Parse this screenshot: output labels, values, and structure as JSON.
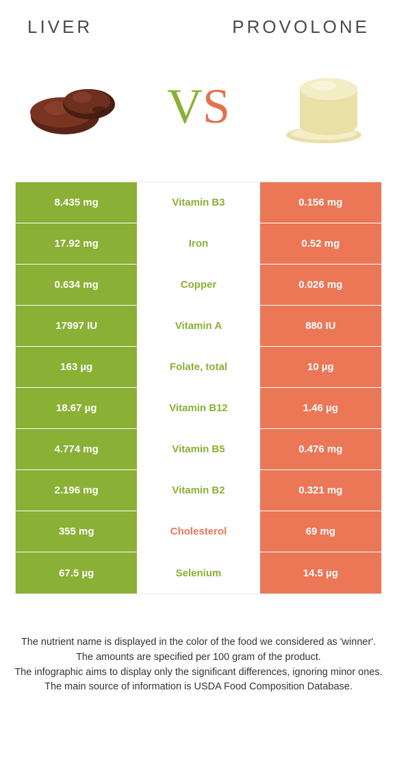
{
  "header": {
    "left": "LIVER",
    "right": "PROVOLONE"
  },
  "vs": {
    "v": "V",
    "s": "S"
  },
  "colors": {
    "green": "#8ab035",
    "orange": "#eb7757",
    "midText": "#8ab035"
  },
  "rows": [
    {
      "left": "8.435 mg",
      "mid": "Vitamin B3",
      "right": "0.156 mg",
      "winner": "left"
    },
    {
      "left": "17.92 mg",
      "mid": "Iron",
      "right": "0.52 mg",
      "winner": "left"
    },
    {
      "left": "0.634 mg",
      "mid": "Copper",
      "right": "0.026 mg",
      "winner": "left"
    },
    {
      "left": "17997 IU",
      "mid": "Vitamin A",
      "right": "880 IU",
      "winner": "left"
    },
    {
      "left": "163 µg",
      "mid": "Folate, total",
      "right": "10 µg",
      "winner": "left"
    },
    {
      "left": "18.67 µg",
      "mid": "Vitamin B12",
      "right": "1.46 µg",
      "winner": "left"
    },
    {
      "left": "4.774 mg",
      "mid": "Vitamin B5",
      "right": "0.476 mg",
      "winner": "left"
    },
    {
      "left": "2.196 mg",
      "mid": "Vitamin B2",
      "right": "0.321 mg",
      "winner": "left"
    },
    {
      "left": "355 mg",
      "mid": "Cholesterol",
      "right": "69 mg",
      "winner": "right"
    },
    {
      "left": "67.5 µg",
      "mid": "Selenium",
      "right": "14.5 µg",
      "winner": "left"
    }
  ],
  "footnotes": [
    "The nutrient name is displayed in the color of the food we considered as 'winner'.",
    "The amounts are specified per 100 gram of the product.",
    "The infographic aims to display only the significant differences, ignoring minor ones.",
    "The main source of information is USDA Food Composition Database."
  ]
}
